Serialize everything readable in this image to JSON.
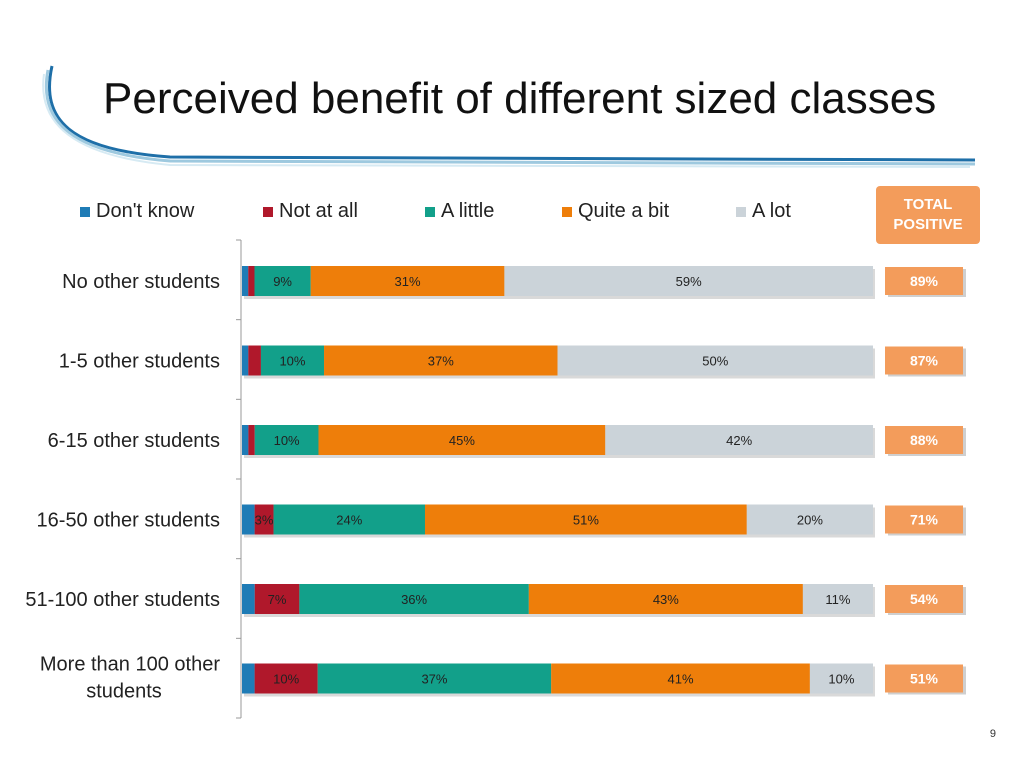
{
  "page": {
    "title": "Perceived benefit of different sized classes",
    "page_number": "9"
  },
  "total_header": {
    "line1": "TOTAL",
    "line2": "POSITIVE"
  },
  "colors": {
    "dont_know": "#1F7CB6",
    "not_at_all": "#B0182B",
    "a_little": "#12A08A",
    "quite_a_bit": "#EE7E0A",
    "a_lot": "#CBD3D9",
    "total_badge": "#F39C5B"
  },
  "chart_data": {
    "type": "bar",
    "orientation": "horizontal",
    "stacked": true,
    "normalized": true,
    "categories": [
      "No other students",
      "1-5 other students",
      "6-15 other students",
      "16-50 other students",
      "51-100 other students",
      "More than 100 other students"
    ],
    "series": [
      {
        "name": "Don't know",
        "color": "#1F7CB6",
        "values": [
          1,
          1,
          1,
          2,
          2,
          2
        ],
        "labels": [
          "",
          "",
          "",
          "",
          "",
          ""
        ]
      },
      {
        "name": "Not at all",
        "color": "#B0182B",
        "values": [
          1,
          2,
          1,
          3,
          7,
          10
        ],
        "labels": [
          "",
          "",
          "",
          "3%",
          "7%",
          "10%"
        ]
      },
      {
        "name": "A little",
        "color": "#12A08A",
        "values": [
          9,
          10,
          10,
          24,
          36,
          37
        ],
        "labels": [
          "9%",
          "10%",
          "10%",
          "24%",
          "36%",
          "37%"
        ]
      },
      {
        "name": "Quite a bit",
        "color": "#EE7E0A",
        "values": [
          31,
          37,
          45,
          51,
          43,
          41
        ],
        "labels": [
          "31%",
          "37%",
          "45%",
          "51%",
          "43%",
          "41%"
        ]
      },
      {
        "name": "A lot",
        "color": "#CBD3D9",
        "values": [
          59,
          50,
          42,
          20,
          11,
          10
        ],
        "labels": [
          "59%",
          "50%",
          "42%",
          "20%",
          "11%",
          "10%"
        ]
      }
    ],
    "total_positive": [
      "89%",
      "87%",
      "88%",
      "71%",
      "54%",
      "51%"
    ],
    "legend_position": "top",
    "grid": false
  }
}
